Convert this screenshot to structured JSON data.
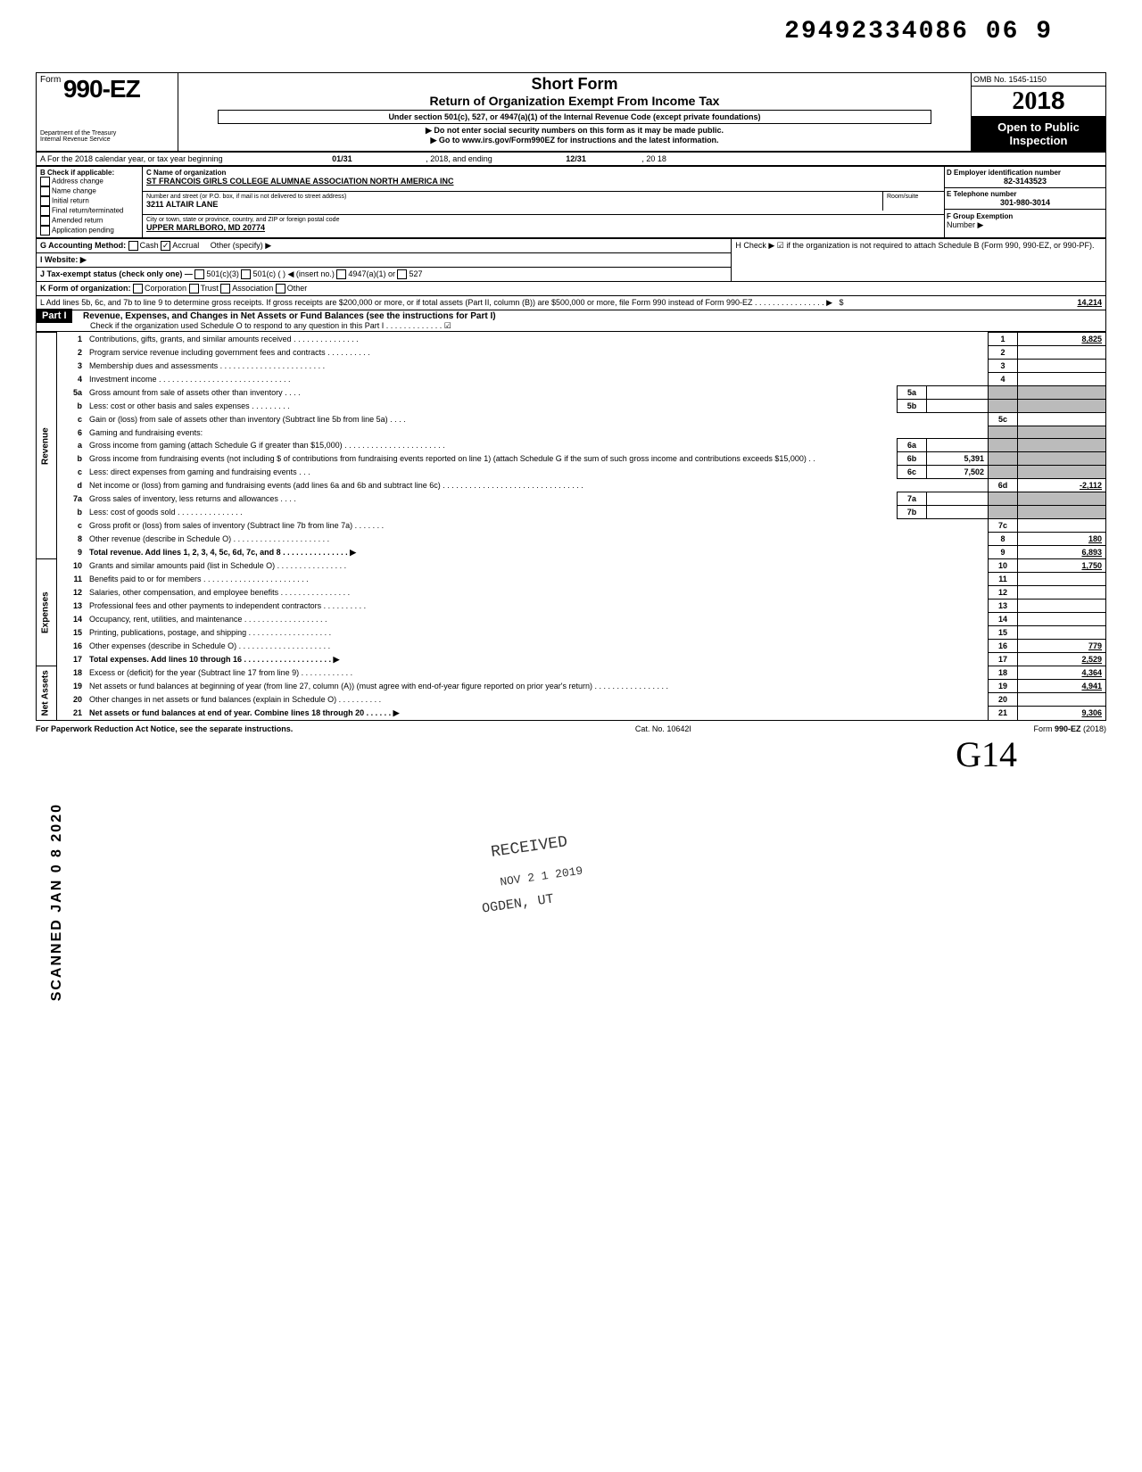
{
  "doc_number": "29492334086 06  9",
  "header": {
    "form_prefix": "Form",
    "form_number": "990-EZ",
    "title1": "Short Form",
    "title2": "Return of Organization Exempt From Income Tax",
    "subtitle": "Under section 501(c), 527, or 4947(a)(1) of the Internal Revenue Code (except private foundations)",
    "note1": "▶ Do not enter social security numbers on this form as it may be made public.",
    "note2": "▶ Go to www.irs.gov/Form990EZ for instructions and the latest information.",
    "omb": "OMB No. 1545-1150",
    "year_prefix": "20",
    "year_suffix": "18",
    "open1": "Open to Public",
    "open2": "Inspection",
    "dept1": "Department of the Treasury",
    "dept2": "Internal Revenue Service"
  },
  "sectionA": {
    "line": "A  For the 2018 calendar year, or tax year beginning",
    "begin": "01/31",
    "mid": ", 2018, and ending",
    "end_month": "12/31",
    "end_year": ", 20  18"
  },
  "sectionB": {
    "label": "B  Check if applicable:",
    "items": [
      "Address change",
      "Name change",
      "Initial return",
      "Final return/terminated",
      "Amended return",
      "Application pending"
    ]
  },
  "sectionC": {
    "label": "C  Name of organization",
    "name": "ST FRANCOIS GIRLS COLLEGE ALUMNAE ASSOCIATION NORTH AMERICA INC",
    "addr_label": "Number and street (or P.O. box, if mail is not delivered to street address)",
    "room_label": "Room/suite",
    "addr": "3211 ALTAIR LANE",
    "city_label": "City or town, state or province, country, and ZIP or foreign postal code",
    "city": "UPPER MARLBORO, MD 20774"
  },
  "sectionD": {
    "label": "D Employer identification number",
    "val": "82-3143523"
  },
  "sectionE": {
    "label": "E Telephone number",
    "val": "301-980-3014"
  },
  "sectionF": {
    "label": "F  Group Exemption",
    "label2": "Number ▶"
  },
  "sectionG": {
    "label": "G  Accounting Method:",
    "cash": "Cash",
    "accrual": "Accrual",
    "other": "Other (specify) ▶"
  },
  "sectionH": {
    "label": "H  Check ▶ ☑ if the organization is not required to attach Schedule B (Form 990, 990-EZ, or 990-PF)."
  },
  "sectionI": {
    "label": "I   Website: ▶"
  },
  "sectionJ": {
    "label": "J  Tax-exempt status (check only one) —",
    "opts": [
      "501(c)(3)",
      "501(c) (",
      "4947(a)(1) or",
      "527"
    ],
    "insert": ") ◀ (insert no.)"
  },
  "sectionK": {
    "label": "K  Form of organization:",
    "opts": [
      "Corporation",
      "Trust",
      "Association",
      "Other"
    ]
  },
  "sectionL": {
    "text": "L  Add lines 5b, 6c, and 7b to line 9 to determine gross receipts. If gross receipts are $200,000 or more, or if total assets (Part II, column (B)) are $500,000 or more, file Form 990 instead of Form 990-EZ . . . . . . . . . . . . . . . . ▶",
    "val": "14,214"
  },
  "part1": {
    "header": "Part I",
    "title": "Revenue, Expenses, and Changes in Net Assets or Fund Balances (see the instructions for Part I)",
    "check_line": "Check if the organization used Schedule O to respond to any question in this Part I . . . . . . . . . . . . . ☑"
  },
  "vert_labels": {
    "revenue": "Revenue",
    "expenses": "Expenses",
    "netassets": "Net Assets"
  },
  "lines": [
    {
      "n": "1",
      "desc": "Contributions, gifts, grants, and similar amounts received . . . . . . . . . . . . . . .",
      "box": "1",
      "val": "8,825"
    },
    {
      "n": "2",
      "desc": "Program service revenue including government fees and contracts  . . . . . . . . . .",
      "box": "2",
      "val": ""
    },
    {
      "n": "3",
      "desc": "Membership dues and assessments . . . . . . . . . . . . . . . . . . . . . . . .",
      "box": "3",
      "val": ""
    },
    {
      "n": "4",
      "desc": "Investment income   . . . . . . . . . . . . . . . . . . . . . . . . . . . . . .",
      "box": "4",
      "val": ""
    },
    {
      "n": "5a",
      "desc": "Gross amount from sale of assets other than inventory   . . . .",
      "inner": "5a",
      "shaded": true
    },
    {
      "n": "b",
      "desc": "Less: cost or other basis and sales expenses . . . . . . . . .",
      "inner": "5b",
      "shaded": true
    },
    {
      "n": "c",
      "desc": "Gain or (loss) from sale of assets other than inventory (Subtract line 5b from line 5a) . . . .",
      "box": "5c",
      "val": ""
    },
    {
      "n": "6",
      "desc": "Gaming and fundraising events:",
      "shaded": true
    },
    {
      "n": "a",
      "desc": "Gross income from gaming (attach Schedule G if greater than $15,000) . . . . . . . . . . . . . . . . . . . . . . .",
      "inner": "6a",
      "shaded": true
    },
    {
      "n": "b",
      "desc": "Gross income from fundraising events (not including  $               of contributions from fundraising events reported on line 1) (attach Schedule G if the sum of such gross income and contributions exceeds $15,000) . .",
      "inner": "6b",
      "inner_val": "5,391",
      "shaded": true
    },
    {
      "n": "c",
      "desc": "Less: direct expenses from gaming and fundraising events   . . .",
      "inner": "6c",
      "inner_val": "7,502",
      "shaded": true
    },
    {
      "n": "d",
      "desc": "Net income or (loss) from gaming and fundraising events (add lines 6a and 6b and subtract line 6c)   . . . . . . . . . . . . . . . . . . . . . . . . . . . . . . . .",
      "box": "6d",
      "val": "-2,112"
    },
    {
      "n": "7a",
      "desc": "Gross sales of inventory, less returns and allowances  . . . .",
      "inner": "7a",
      "shaded": true
    },
    {
      "n": "b",
      "desc": "Less: cost of goods sold    . . . . . . . . . . . . . . .",
      "inner": "7b",
      "shaded": true
    },
    {
      "n": "c",
      "desc": "Gross profit or (loss) from sales of inventory (Subtract line 7b from line 7a)  . . . . . . .",
      "box": "7c",
      "val": ""
    },
    {
      "n": "8",
      "desc": "Other revenue (describe in Schedule O) . . . . . . . . . . . . . . . . . . . . . .",
      "box": "8",
      "val": "180"
    },
    {
      "n": "9",
      "desc": "Total revenue. Add lines 1, 2, 3, 4, 5c, 6d, 7c, and 8  . . . . . . . . . . . . . . . ▶",
      "box": "9",
      "val": "6,893",
      "bold": true
    },
    {
      "n": "10",
      "desc": "Grants and similar amounts paid (list in Schedule O)  . . . . . . . . . . . . . . . .",
      "box": "10",
      "val": "1,750"
    },
    {
      "n": "11",
      "desc": "Benefits paid to or for members   . . . . . . . . . . . . . . . . . . . . . . . .",
      "box": "11",
      "val": ""
    },
    {
      "n": "12",
      "desc": "Salaries, other compensation, and employee benefits . . . . . . . . . . . . . . . .",
      "box": "12",
      "val": ""
    },
    {
      "n": "13",
      "desc": "Professional fees and other payments to independent contractors  . . . . . . . . . .",
      "box": "13",
      "val": ""
    },
    {
      "n": "14",
      "desc": "Occupancy, rent, utilities, and maintenance   . . . . . . . . . . . . . . . . . . .",
      "box": "14",
      "val": ""
    },
    {
      "n": "15",
      "desc": "Printing, publications, postage, and shipping . . . . . . . . . . . . . . . . . . .",
      "box": "15",
      "val": ""
    },
    {
      "n": "16",
      "desc": "Other expenses (describe in Schedule O)  . . . . . . . . . . . . . . . . . . . . .",
      "box": "16",
      "val": "779"
    },
    {
      "n": "17",
      "desc": "Total expenses. Add lines 10 through 16  . . . . . . . . . . . . . . . . . . . . ▶",
      "box": "17",
      "val": "2,529",
      "bold": true
    },
    {
      "n": "18",
      "desc": "Excess or (deficit) for the year (Subtract line 17 from line 9)   . . . . . . . . . . . .",
      "box": "18",
      "val": "4,364"
    },
    {
      "n": "19",
      "desc": "Net assets or fund balances at beginning of year (from line 27, column (A)) (must agree with end-of-year figure reported on prior year's return)   . . . . . . . . . . . . . . . . .",
      "box": "19",
      "val": "4,941",
      "shaded_box": true
    },
    {
      "n": "20",
      "desc": "Other changes in net assets or fund balances (explain in Schedule O) . . . . . . . . . .",
      "box": "20",
      "val": ""
    },
    {
      "n": "21",
      "desc": "Net assets or fund balances at end of year. Combine lines 18 through 20   . . . . . . ▶",
      "box": "21",
      "val": "9,306",
      "bold": true
    }
  ],
  "stamps": {
    "received": "RECEIVED",
    "date": "NOV 2 1 2019",
    "ogden": "OGDEN, UT",
    "scanned": "SCANNED  JAN 0 8  2020"
  },
  "footer": {
    "left": "For Paperwork Reduction Act Notice, see the separate instructions.",
    "mid": "Cat. No. 10642I",
    "right": "Form 990-EZ (2018)"
  },
  "signature": "G14",
  "colors": {
    "text": "#000000",
    "bg": "#ffffff",
    "shade": "#bbbbbb",
    "header_bg": "#000000",
    "header_fg": "#ffffff"
  }
}
